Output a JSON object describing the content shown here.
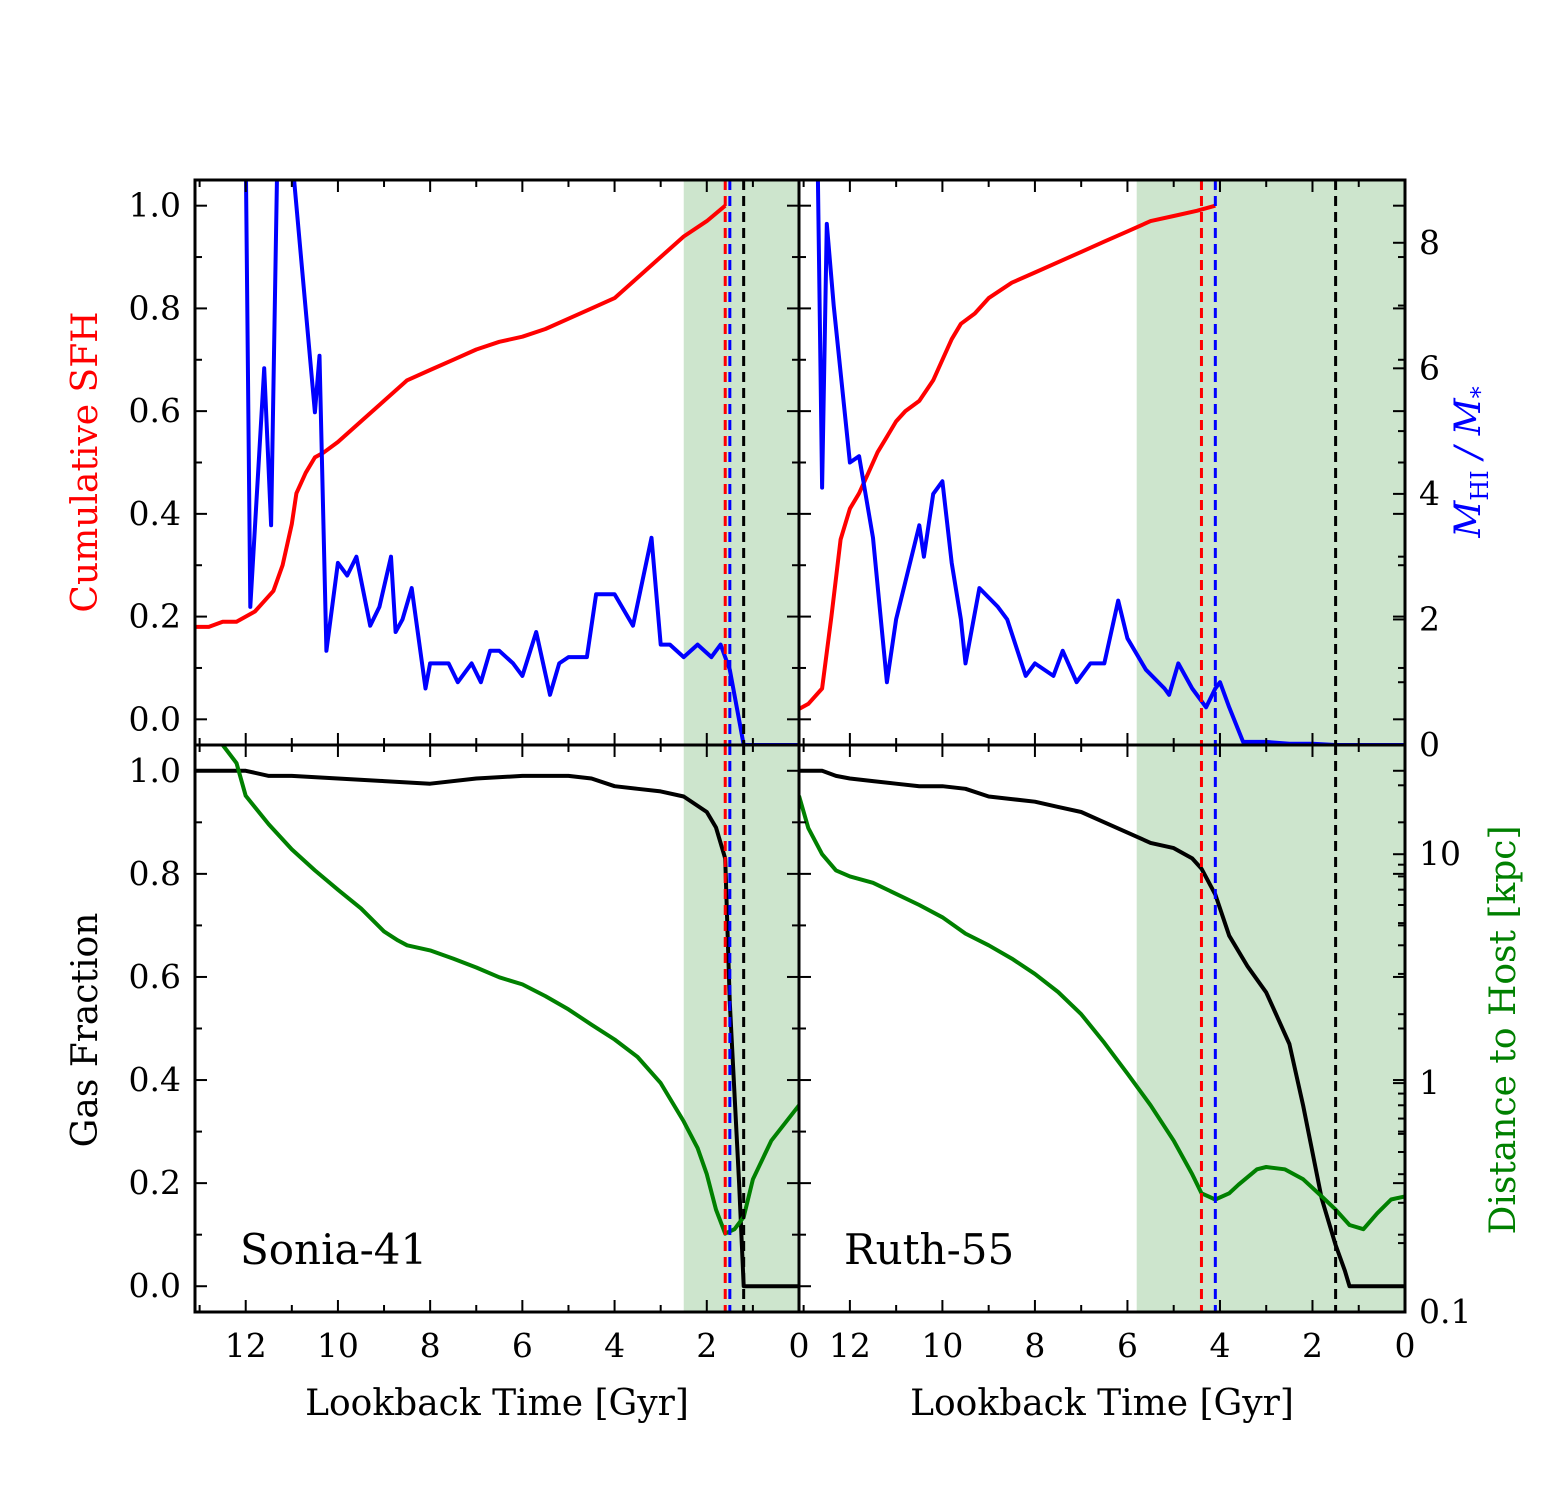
{
  "figure": {
    "x_axis_label": "Lookback Time [Gyr]",
    "left_top_ylabel": "Cumulative SFH",
    "left_bottom_ylabel": "Gas Fraction",
    "right_top_ylabel_main": "M",
    "right_top_ylabel_sub1": "HI",
    "right_top_ylabel_mid": " / M",
    "right_top_ylabel_sub2": "*",
    "right_bottom_ylabel": "Distance to Host [kpc]",
    "colors": {
      "cumulative_sfh": "#ff0000",
      "hi_ratio": "#0000ff",
      "gas_fraction": "#000000",
      "distance": "#008000",
      "shade": "#cde5cd",
      "red_line": "#ff0000",
      "blue_line": "#0000ff",
      "black_line": "#000000"
    },
    "tick_labels": {
      "cumsfh": [
        "0.0",
        "0.2",
        "0.4",
        "0.6",
        "0.8",
        "1.0"
      ],
      "gasfrac": [
        "0.0",
        "0.2",
        "0.4",
        "0.6",
        "0.8",
        "1.0"
      ],
      "hiratio": [
        "0",
        "2",
        "4",
        "6",
        "8"
      ],
      "distance": [
        "0.1",
        "1",
        "10"
      ],
      "x": [
        "12",
        "10",
        "8",
        "6",
        "4",
        "2",
        "0"
      ]
    }
  },
  "chart_data": [
    {
      "type": "line",
      "panel": "top-left",
      "title": "",
      "xlabel": "",
      "ylabel": "Cumulative SFH",
      "y2label": "M_HI / M_*",
      "xlim": [
        13.1,
        0
      ],
      "ylim": [
        -0.05,
        1.05
      ],
      "y2lim": [
        0,
        9
      ],
      "shaded_region": [
        2.5,
        0
      ],
      "vlines": {
        "red": 1.6,
        "blue": 1.5,
        "black": 1.2
      },
      "series": [
        {
          "axis": "left",
          "color": "#ff0000",
          "x": [
            13.1,
            12.8,
            12.5,
            12.2,
            12.0,
            11.8,
            11.6,
            11.4,
            11.2,
            11.0,
            10.9,
            10.7,
            10.5,
            10.3,
            10.0,
            9.5,
            9.0,
            8.5,
            8.0,
            7.5,
            7.0,
            6.5,
            6.0,
            5.5,
            5.0,
            4.5,
            4.0,
            3.5,
            3.0,
            2.5,
            2.0,
            1.6
          ],
          "y": [
            0.18,
            0.18,
            0.19,
            0.19,
            0.2,
            0.21,
            0.23,
            0.25,
            0.3,
            0.38,
            0.44,
            0.48,
            0.51,
            0.52,
            0.54,
            0.58,
            0.62,
            0.66,
            0.68,
            0.7,
            0.72,
            0.735,
            0.745,
            0.76,
            0.78,
            0.8,
            0.82,
            0.86,
            0.9,
            0.94,
            0.97,
            1.0
          ]
        },
        {
          "axis": "right",
          "color": "#0000ff",
          "x": [
            12.0,
            11.9,
            11.6,
            11.45,
            11.3,
            11.1,
            10.95,
            10.5,
            10.4,
            10.25,
            10.0,
            9.8,
            9.6,
            9.3,
            9.1,
            8.85,
            8.75,
            8.6,
            8.4,
            8.1,
            8.0,
            7.6,
            7.4,
            7.1,
            6.9,
            6.7,
            6.5,
            6.2,
            6.0,
            5.7,
            5.4,
            5.2,
            5.0,
            4.6,
            4.4,
            4.0,
            3.6,
            3.2,
            3.0,
            2.8,
            2.5,
            2.2,
            1.9,
            1.7,
            1.5,
            1.3,
            1.2,
            0
          ],
          "y": [
            9.5,
            2.2,
            6.0,
            3.5,
            10.0,
            10.0,
            9.0,
            5.3,
            6.2,
            1.5,
            2.9,
            2.7,
            3.0,
            1.9,
            2.2,
            3.0,
            1.8,
            2.0,
            2.5,
            0.9,
            1.3,
            1.3,
            1.0,
            1.3,
            1.0,
            1.5,
            1.5,
            1.3,
            1.1,
            1.8,
            0.8,
            1.3,
            1.4,
            1.4,
            2.4,
            2.4,
            1.9,
            3.3,
            1.6,
            1.6,
            1.4,
            1.6,
            1.4,
            1.6,
            1.2,
            0.4,
            0.0,
            0.0
          ]
        }
      ]
    },
    {
      "type": "line",
      "panel": "top-right",
      "title": "",
      "xlabel": "",
      "ylabel": "",
      "y2label": "M_HI / M_*",
      "xlim": [
        13.1,
        0
      ],
      "ylim": [
        -0.05,
        1.05
      ],
      "y2lim": [
        0,
        9
      ],
      "shaded_region": [
        5.8,
        0
      ],
      "vlines": {
        "red": 4.4,
        "blue": 4.1,
        "black": 1.5
      },
      "series": [
        {
          "axis": "left",
          "color": "#ff0000",
          "x": [
            13.1,
            12.9,
            12.6,
            12.4,
            12.2,
            12.0,
            11.8,
            11.6,
            11.4,
            11.2,
            11.0,
            10.8,
            10.5,
            10.2,
            10.0,
            9.8,
            9.6,
            9.3,
            9.0,
            8.5,
            8.0,
            7.5,
            7.0,
            6.5,
            6.0,
            5.5,
            5.0,
            4.5,
            4.1
          ],
          "y": [
            0.02,
            0.03,
            0.06,
            0.2,
            0.35,
            0.41,
            0.44,
            0.48,
            0.52,
            0.55,
            0.58,
            0.6,
            0.62,
            0.66,
            0.7,
            0.74,
            0.77,
            0.79,
            0.82,
            0.85,
            0.87,
            0.89,
            0.91,
            0.93,
            0.95,
            0.97,
            0.98,
            0.99,
            1.0
          ]
        },
        {
          "axis": "right",
          "color": "#0000ff",
          "x": [
            12.7,
            12.6,
            12.5,
            12.35,
            12.0,
            11.8,
            11.5,
            11.2,
            11.0,
            10.5,
            10.4,
            10.2,
            10.0,
            9.8,
            9.6,
            9.5,
            9.2,
            8.8,
            8.6,
            8.2,
            8.0,
            7.6,
            7.4,
            7.1,
            6.8,
            6.5,
            6.2,
            6.0,
            5.6,
            5.2,
            5.1,
            4.9,
            4.6,
            4.3,
            4.1,
            4.0,
            3.8,
            3.5,
            3.0,
            2.5,
            2.0,
            1.5,
            1.0,
            0.5,
            0
          ],
          "y": [
            9.5,
            4.1,
            8.3,
            7.0,
            4.5,
            4.6,
            3.3,
            1.0,
            2.0,
            3.5,
            3.0,
            4.0,
            4.2,
            2.9,
            2.0,
            1.3,
            2.5,
            2.2,
            2.0,
            1.1,
            1.3,
            1.1,
            1.5,
            1.0,
            1.3,
            1.3,
            2.3,
            1.7,
            1.2,
            0.9,
            0.8,
            1.3,
            0.9,
            0.6,
            0.9,
            1.0,
            0.6,
            0.05,
            0.05,
            0.02,
            0.02,
            0.0,
            0.0,
            0.0,
            0.0
          ]
        }
      ]
    },
    {
      "type": "line",
      "panel": "bottom-left",
      "title": "Sonia-41",
      "xlabel": "Lookback Time [Gyr]",
      "ylabel": "Gas Fraction",
      "y2label": "Distance to Host [kpc]",
      "y2scale": "log",
      "xlim": [
        13.1,
        0
      ],
      "ylim": [
        -0.05,
        1.05
      ],
      "y2lim": [
        0.1,
        30
      ],
      "shaded_region": [
        2.5,
        0
      ],
      "vlines": {
        "red": 1.6,
        "blue": 1.5,
        "black": 1.2
      },
      "series": [
        {
          "axis": "left",
          "color": "#000000",
          "x": [
            13.1,
            12.0,
            11.5,
            11.0,
            10.0,
            9.0,
            8.0,
            7.0,
            6.0,
            5.0,
            4.5,
            4.0,
            3.5,
            3.0,
            2.5,
            2.0,
            1.8,
            1.6,
            1.5,
            1.3,
            1.2,
            1.0,
            0
          ],
          "y": [
            1.0,
            1.0,
            0.99,
            0.99,
            0.985,
            0.98,
            0.975,
            0.985,
            0.99,
            0.99,
            0.985,
            0.97,
            0.965,
            0.96,
            0.95,
            0.92,
            0.89,
            0.83,
            0.55,
            0.2,
            0.0,
            0.0,
            0.0
          ]
        },
        {
          "axis": "right",
          "color": "#008000",
          "x": [
            12.5,
            12.2,
            12.0,
            11.5,
            11.0,
            10.5,
            10.0,
            9.5,
            9.0,
            8.7,
            8.5,
            8.0,
            7.5,
            7.0,
            6.5,
            6.0,
            5.5,
            5.0,
            4.5,
            4.0,
            3.5,
            3.0,
            2.5,
            2.2,
            2.0,
            1.8,
            1.6,
            1.4,
            1.2,
            1.0,
            0.6,
            0
          ],
          "y": [
            30,
            25,
            18,
            13.5,
            10.5,
            8.5,
            7.0,
            5.8,
            4.6,
            4.2,
            4.0,
            3.8,
            3.5,
            3.2,
            2.9,
            2.7,
            2.4,
            2.1,
            1.8,
            1.55,
            1.3,
            1.0,
            0.68,
            0.52,
            0.4,
            0.28,
            0.22,
            0.23,
            0.26,
            0.38,
            0.56,
            0.8
          ]
        }
      ]
    },
    {
      "type": "line",
      "panel": "bottom-right",
      "title": "Ruth-55",
      "xlabel": "Lookback Time [Gyr]",
      "ylabel": "",
      "y2label": "Distance to Host [kpc]",
      "y2scale": "log",
      "xlim": [
        13.1,
        0
      ],
      "ylim": [
        -0.05,
        1.05
      ],
      "y2lim": [
        0.1,
        30
      ],
      "shaded_region": [
        5.8,
        0
      ],
      "vlines": {
        "red": 4.4,
        "blue": 4.1,
        "black": 1.5
      },
      "series": [
        {
          "axis": "left",
          "color": "#000000",
          "x": [
            13.1,
            12.6,
            12.3,
            12.0,
            11.5,
            11.0,
            10.5,
            10.0,
            9.5,
            9.0,
            8.5,
            8.0,
            7.5,
            7.0,
            6.5,
            6.0,
            5.5,
            5.0,
            4.6,
            4.4,
            4.1,
            3.8,
            3.4,
            3.0,
            2.8,
            2.5,
            2.2,
            1.8,
            1.5,
            1.3,
            1.2,
            0.5,
            0
          ],
          "y": [
            1.0,
            1.0,
            0.99,
            0.985,
            0.98,
            0.975,
            0.97,
            0.97,
            0.965,
            0.95,
            0.945,
            0.94,
            0.93,
            0.92,
            0.9,
            0.88,
            0.86,
            0.85,
            0.83,
            0.81,
            0.76,
            0.68,
            0.62,
            0.57,
            0.53,
            0.47,
            0.35,
            0.17,
            0.08,
            0.03,
            0.0,
            0.0,
            0.0
          ]
        },
        {
          "axis": "right",
          "color": "#008000",
          "x": [
            13.1,
            12.9,
            12.6,
            12.3,
            12.0,
            11.5,
            10.5,
            10.0,
            9.5,
            9.0,
            8.5,
            8.0,
            7.5,
            7.0,
            6.5,
            6.0,
            5.5,
            5.0,
            4.6,
            4.4,
            4.1,
            3.8,
            3.6,
            3.2,
            3.0,
            2.6,
            2.2,
            1.8,
            1.5,
            1.2,
            0.9,
            0.6,
            0.3,
            0
          ],
          "y": [
            18,
            13,
            10,
            8.5,
            8.0,
            7.5,
            6.0,
            5.3,
            4.5,
            4.0,
            3.5,
            3.0,
            2.5,
            2.0,
            1.5,
            1.1,
            0.8,
            0.56,
            0.4,
            0.33,
            0.31,
            0.33,
            0.36,
            0.42,
            0.43,
            0.42,
            0.38,
            0.32,
            0.28,
            0.24,
            0.23,
            0.27,
            0.31,
            0.32
          ]
        }
      ]
    }
  ]
}
